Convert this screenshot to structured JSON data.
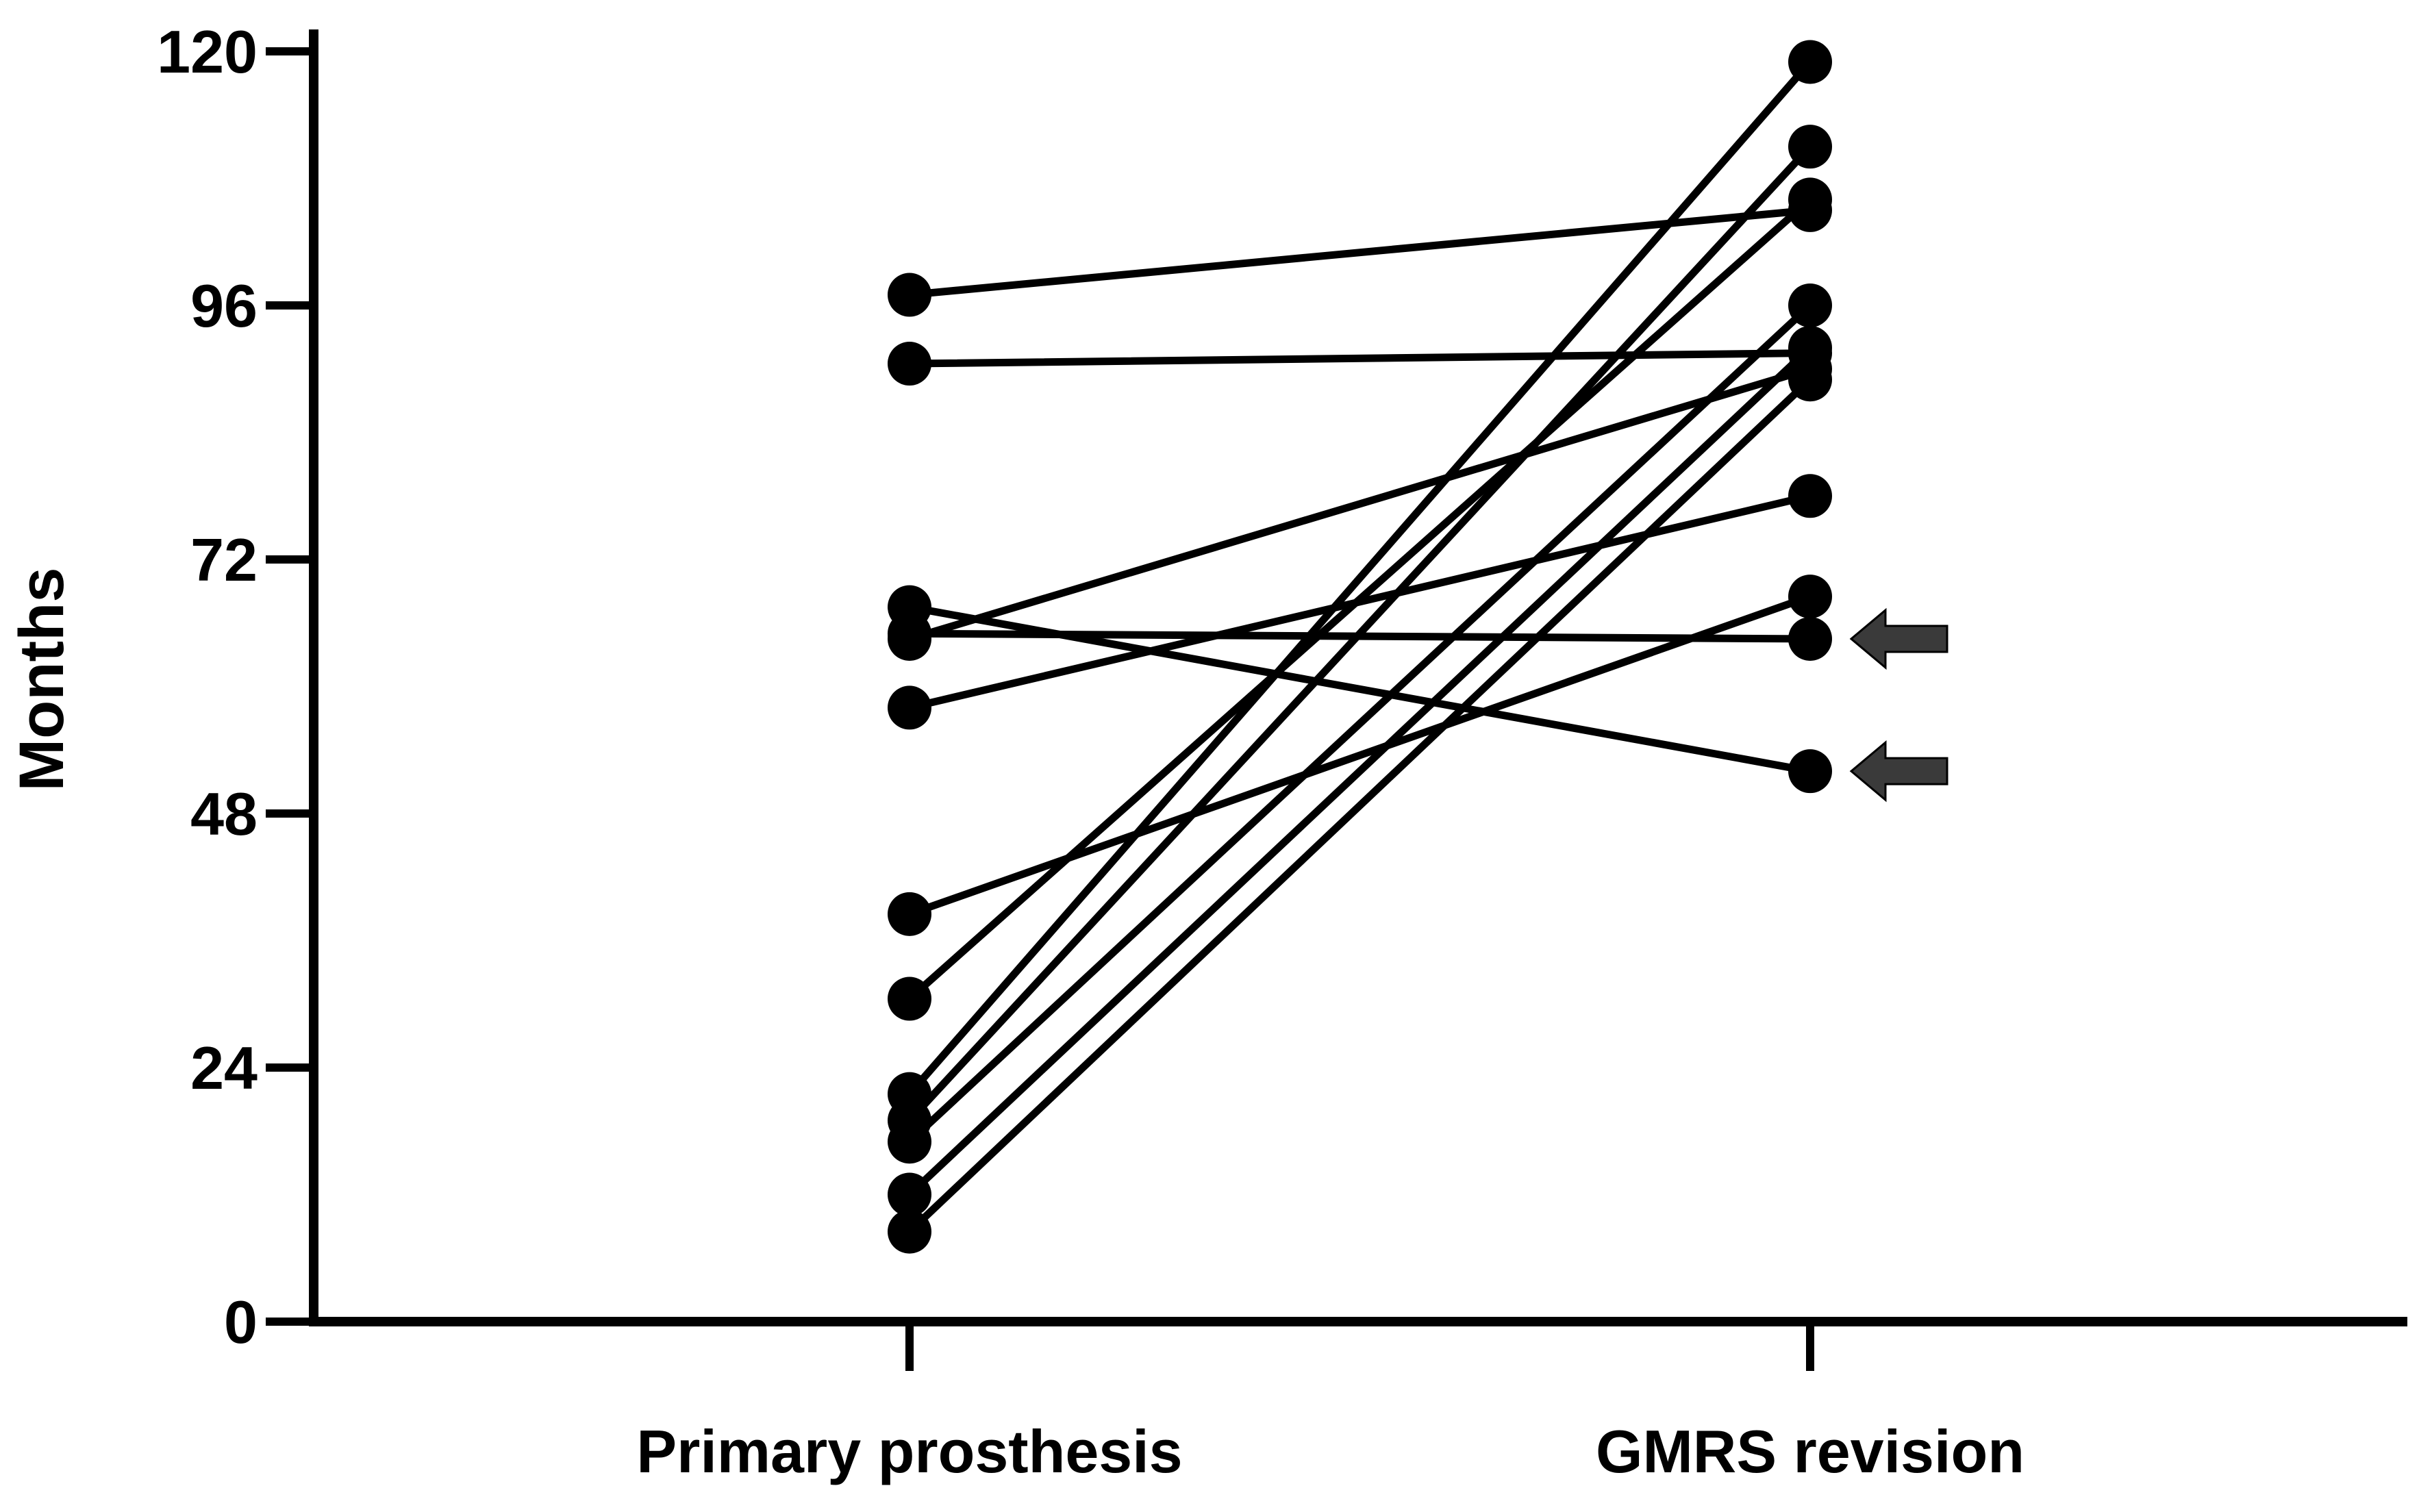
{
  "chart_data": {
    "type": "line",
    "title": "",
    "xlabel": "",
    "ylabel": "Months",
    "categories": [
      "Primary prosthesis",
      "GMRS revision"
    ],
    "ylim": [
      0,
      120
    ],
    "yticks": [
      0,
      24,
      48,
      72,
      96,
      120
    ],
    "grid": false,
    "legend": "none",
    "series": [
      {
        "values": [
          97,
          105
        ]
      },
      {
        "values": [
          90.5,
          91.5
        ]
      },
      {
        "values": [
          67.5,
          52
        ]
      },
      {
        "values": [
          65,
          64.5
        ]
      },
      {
        "values": [
          64.5,
          90
        ]
      },
      {
        "values": [
          58,
          78
        ]
      },
      {
        "values": [
          38.5,
          68.5
        ]
      },
      {
        "values": [
          30.5,
          106
        ]
      },
      {
        "values": [
          21.5,
          119
        ]
      },
      {
        "values": [
          19,
          111
        ]
      },
      {
        "values": [
          17,
          96
        ]
      },
      {
        "values": [
          12,
          92
        ]
      },
      {
        "values": [
          8.5,
          89
        ]
      }
    ],
    "annotations": [
      {
        "type": "arrow",
        "category": "GMRS revision",
        "y": 64.5,
        "direction": "left"
      },
      {
        "type": "arrow",
        "category": "GMRS revision",
        "y": 52,
        "direction": "left"
      }
    ],
    "colors": {
      "line": "#000000",
      "marker": "#000000",
      "arrow": "#3a3a3a",
      "axis": "#000000"
    }
  }
}
